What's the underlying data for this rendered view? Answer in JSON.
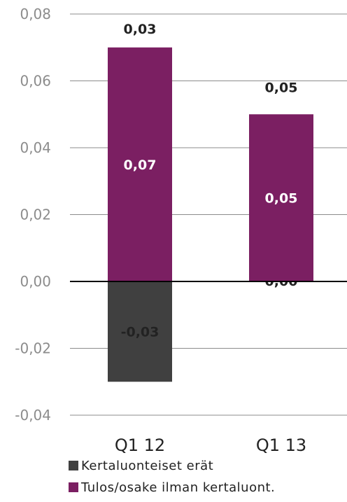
{
  "chart_data": {
    "type": "bar",
    "stacked": true,
    "categories": [
      "Q1 12",
      "Q1 13"
    ],
    "series": [
      {
        "name": "Kertaluonteiset erät",
        "color": "#404040",
        "values": [
          -0.03,
          0.0
        ],
        "labels": [
          "-0,03",
          "0,00"
        ],
        "label_color": "#222222"
      },
      {
        "name": "Tulos/osake ilman kertaluont.",
        "color": "#7b1f62",
        "values": [
          0.07,
          0.05
        ],
        "labels": [
          "0,07",
          "0,05"
        ],
        "label_color": "#ffffff"
      }
    ],
    "totals": {
      "labels": [
        "0,03",
        "0,05"
      ],
      "values": [
        0.03,
        0.05
      ]
    },
    "ylim": [
      -0.04,
      0.08
    ],
    "yticks": [
      0.08,
      0.06,
      0.04,
      0.02,
      0.0,
      -0.02,
      -0.04
    ],
    "ytick_labels": [
      "0,08",
      "0,06",
      "0,04",
      "0,02",
      "0,00",
      "-0,02",
      "-0,04"
    ],
    "grid": true,
    "legend_position": "bottom"
  }
}
